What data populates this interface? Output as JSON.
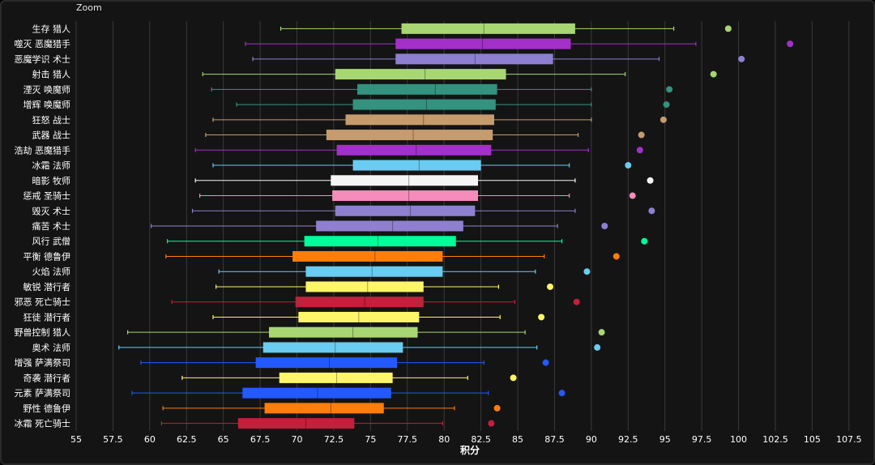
{
  "zoom_label": "Zoom",
  "chart_data": {
    "type": "boxplot",
    "orientation": "horizontal",
    "xlabel": "积分",
    "xlim": [
      55,
      108.5
    ],
    "xticks": [
      55,
      57.5,
      60,
      62.5,
      65,
      67.5,
      70,
      72.5,
      75,
      77.5,
      80,
      82.5,
      85,
      87.5,
      90,
      92.5,
      95,
      97.5,
      100,
      102.5,
      105,
      107.5
    ],
    "grid": true,
    "series": [
      {
        "name": "生存 猎人",
        "color": "#a8d672",
        "whisker_low": 68.9,
        "q1": 77.1,
        "median": 82.7,
        "q3": 88.9,
        "whisker_high": 95.6,
        "outlier": 99.3
      },
      {
        "name": "噬灭 恶魔猎手",
        "color": "#a330c9",
        "whisker_low": 66.5,
        "q1": 76.7,
        "median": 82.6,
        "q3": 88.6,
        "whisker_high": 97.1,
        "outlier": 103.5
      },
      {
        "name": "恶魔学识 术士",
        "color": "#8f7fd0",
        "whisker_low": 67.0,
        "q1": 76.7,
        "median": 82.1,
        "q3": 87.4,
        "whisker_high": 94.6,
        "outlier": 100.2
      },
      {
        "name": "射击 猎人",
        "color": "#a8d672",
        "whisker_low": 63.6,
        "q1": 72.6,
        "median": 78.7,
        "q3": 84.2,
        "whisker_high": 92.3,
        "outlier": 98.3
      },
      {
        "name": "湮灭 唤魔师",
        "color": "#33937f",
        "whisker_low": 64.2,
        "q1": 74.1,
        "median": 79.4,
        "q3": 83.6,
        "whisker_high": 90.0,
        "outlier": 95.3
      },
      {
        "name": "增辉 唤魔师",
        "color": "#33937f",
        "whisker_low": 65.9,
        "q1": 73.8,
        "median": 78.8,
        "q3": 83.5,
        "whisker_high": 90.0,
        "outlier": 95.1
      },
      {
        "name": "狂怒 战士",
        "color": "#c69b6d",
        "whisker_low": 64.3,
        "q1": 73.3,
        "median": 78.6,
        "q3": 83.4,
        "whisker_high": 90.0,
        "outlier": 94.9
      },
      {
        "name": "武器 战士",
        "color": "#c69b6d",
        "whisker_low": 63.8,
        "q1": 72.0,
        "median": 77.9,
        "q3": 83.3,
        "whisker_high": 89.1,
        "outlier": 93.4
      },
      {
        "name": "浩劫 恶魔猎手",
        "color": "#a330c9",
        "whisker_low": 63.1,
        "q1": 72.7,
        "median": 78.1,
        "q3": 83.2,
        "whisker_high": 89.8,
        "outlier": 93.3
      },
      {
        "name": "冰霜 法师",
        "color": "#69ccf0",
        "whisker_low": 64.3,
        "q1": 73.8,
        "median": 78.3,
        "q3": 82.5,
        "whisker_high": 88.5,
        "outlier": 92.5
      },
      {
        "name": "暗影 牧师",
        "color": "#f5f5f5",
        "whisker_low": 63.1,
        "q1": 72.3,
        "median": 77.6,
        "q3": 82.3,
        "whisker_high": 88.9,
        "outlier": 94.0
      },
      {
        "name": "惩戒 圣骑士",
        "color": "#f58cba",
        "whisker_low": 63.4,
        "q1": 72.4,
        "median": 77.6,
        "q3": 82.3,
        "whisker_high": 88.5,
        "outlier": 92.8
      },
      {
        "name": "毁灭 术士",
        "color": "#8f7fd0",
        "whisker_low": 62.9,
        "q1": 72.6,
        "median": 77.7,
        "q3": 82.1,
        "whisker_high": 88.9,
        "outlier": 94.1
      },
      {
        "name": "痛苦 术士",
        "color": "#8f7fd0",
        "whisker_low": 60.1,
        "q1": 71.3,
        "median": 76.5,
        "q3": 81.3,
        "whisker_high": 87.7,
        "outlier": 90.9
      },
      {
        "name": "风行 武僧",
        "color": "#00ff98",
        "whisker_low": 61.2,
        "q1": 70.5,
        "median": 75.5,
        "q3": 80.8,
        "whisker_high": 88.0,
        "outlier": 93.6
      },
      {
        "name": "平衡 德鲁伊",
        "color": "#ff7d0a",
        "whisker_low": 61.1,
        "q1": 69.7,
        "median": 75.3,
        "q3": 79.9,
        "whisker_high": 86.8,
        "outlier": 91.7
      },
      {
        "name": "火焰 法师",
        "color": "#69ccf0",
        "whisker_low": 64.7,
        "q1": 70.6,
        "median": 75.1,
        "q3": 79.9,
        "whisker_high": 86.2,
        "outlier": 89.7
      },
      {
        "name": "敏锐 潜行者",
        "color": "#fff569",
        "whisker_low": 64.5,
        "q1": 70.6,
        "median": 74.8,
        "q3": 78.6,
        "whisker_high": 83.7,
        "outlier": 87.2
      },
      {
        "name": "邪恶 死亡骑士",
        "color": "#c41f3b",
        "whisker_low": 61.5,
        "q1": 69.9,
        "median": 74.6,
        "q3": 78.6,
        "whisker_high": 84.8,
        "outlier": 89.0
      },
      {
        "name": "狂徒 潜行者",
        "color": "#fff569",
        "whisker_low": 64.3,
        "q1": 70.1,
        "median": 74.2,
        "q3": 78.3,
        "whisker_high": 83.8,
        "outlier": 86.6
      },
      {
        "name": "野兽控制 猎人",
        "color": "#a8d672",
        "whisker_low": 58.5,
        "q1": 68.1,
        "median": 73.8,
        "q3": 78.2,
        "whisker_high": 85.5,
        "outlier": 90.7
      },
      {
        "name": "奥术 法师",
        "color": "#69ccf0",
        "whisker_low": 57.9,
        "q1": 67.7,
        "median": 72.6,
        "q3": 77.2,
        "whisker_high": 86.3,
        "outlier": 90.4
      },
      {
        "name": "增强 萨满祭司",
        "color": "#2359ff",
        "whisker_low": 59.4,
        "q1": 67.2,
        "median": 72.2,
        "q3": 76.8,
        "whisker_high": 82.7,
        "outlier": 86.9
      },
      {
        "name": "奇袭 潜行者",
        "color": "#fff569",
        "whisker_low": 62.2,
        "q1": 68.8,
        "median": 72.7,
        "q3": 76.5,
        "whisker_high": 81.6,
        "outlier": 84.7
      },
      {
        "name": "元素 萨满祭司",
        "color": "#2359ff",
        "whisker_low": 58.8,
        "q1": 66.3,
        "median": 71.4,
        "q3": 76.4,
        "whisker_high": 83.0,
        "outlier": 88.0
      },
      {
        "name": "野性 德鲁伊",
        "color": "#ff7d0a",
        "whisker_low": 60.9,
        "q1": 67.8,
        "median": 72.3,
        "q3": 75.9,
        "whisker_high": 80.7,
        "outlier": 83.6
      },
      {
        "name": "冰霜 死亡骑士",
        "color": "#c41f3b",
        "whisker_low": 60.8,
        "q1": 66.0,
        "median": 70.6,
        "q3": 73.9,
        "whisker_high": 79.9,
        "outlier": 83.2
      }
    ]
  }
}
